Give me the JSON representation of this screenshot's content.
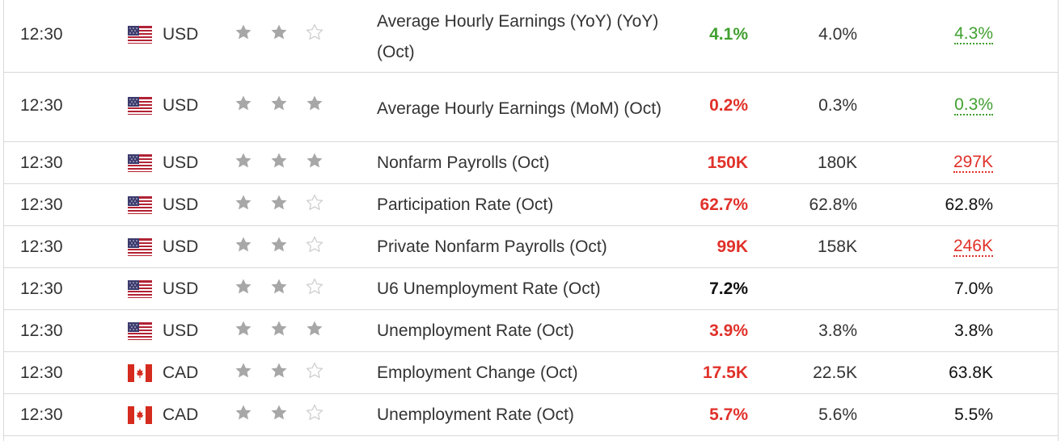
{
  "colors": {
    "green": "#41a030",
    "red": "#e0312a",
    "black": "#111111",
    "star_filled": "#a7a7a7",
    "star_empty": "#cfcfcf"
  },
  "events": [
    {
      "time": "12:30",
      "flag": "us-flag-icon",
      "currency": "USD",
      "importance": 2,
      "event": "Average Hourly Earnings (YoY) (YoY) (Oct)",
      "actual": "4.1%",
      "actual_color": "#41a030",
      "forecast": "4.0%",
      "previous": "4.3%",
      "previous_color": "#41a030",
      "previous_revised": true
    },
    {
      "time": "12:30",
      "flag": "us-flag-icon",
      "currency": "USD",
      "importance": 3,
      "event": "Average Hourly Earnings (MoM) (Oct)",
      "actual": "0.2%",
      "actual_color": "#e0312a",
      "forecast": "0.3%",
      "previous": "0.3%",
      "previous_color": "#41a030",
      "previous_revised": true
    },
    {
      "time": "12:30",
      "flag": "us-flag-icon",
      "currency": "USD",
      "importance": 3,
      "event": "Nonfarm Payrolls (Oct)",
      "actual": "150K",
      "actual_color": "#e0312a",
      "forecast": "180K",
      "previous": "297K",
      "previous_color": "#e0312a",
      "previous_revised": true
    },
    {
      "time": "12:30",
      "flag": "us-flag-icon",
      "currency": "USD",
      "importance": 2,
      "event": "Participation Rate (Oct)",
      "actual": "62.7%",
      "actual_color": "#e0312a",
      "forecast": "62.8%",
      "previous": "62.8%",
      "previous_color": "#111111",
      "previous_revised": false
    },
    {
      "time": "12:30",
      "flag": "us-flag-icon",
      "currency": "USD",
      "importance": 2,
      "event": "Private Nonfarm Payrolls (Oct)",
      "actual": "99K",
      "actual_color": "#e0312a",
      "forecast": "158K",
      "previous": "246K",
      "previous_color": "#e0312a",
      "previous_revised": true
    },
    {
      "time": "12:30",
      "flag": "us-flag-icon",
      "currency": "USD",
      "importance": 2,
      "event": "U6 Unemployment Rate (Oct)",
      "actual": "7.2%",
      "actual_color": "#111111",
      "forecast": "",
      "previous": "7.0%",
      "previous_color": "#111111",
      "previous_revised": false
    },
    {
      "time": "12:30",
      "flag": "us-flag-icon",
      "currency": "USD",
      "importance": 3,
      "event": "Unemployment Rate (Oct)",
      "actual": "3.9%",
      "actual_color": "#e0312a",
      "forecast": "3.8%",
      "previous": "3.8%",
      "previous_color": "#111111",
      "previous_revised": false
    },
    {
      "time": "12:30",
      "flag": "ca-flag-icon",
      "currency": "CAD",
      "importance": 2,
      "event": "Employment Change (Oct)",
      "actual": "17.5K",
      "actual_color": "#e0312a",
      "forecast": "22.5K",
      "previous": "63.8K",
      "previous_color": "#111111",
      "previous_revised": false
    },
    {
      "time": "12:30",
      "flag": "ca-flag-icon",
      "currency": "CAD",
      "importance": 2,
      "event": "Unemployment Rate (Oct)",
      "actual": "5.7%",
      "actual_color": "#e0312a",
      "forecast": "5.6%",
      "previous": "5.5%",
      "previous_color": "#111111",
      "previous_revised": false
    }
  ]
}
